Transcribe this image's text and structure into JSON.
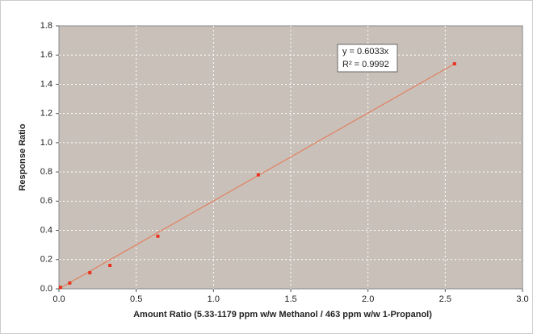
{
  "chart_data": {
    "type": "scatter",
    "x_label": "Amount Ratio (5.33-1179 ppm w/w Methanol / 463 ppm w/w 1-Propanol)",
    "y_label": "Response Ratio",
    "series": [
      {
        "color": "#e8321e",
        "x": [
          0.01,
          0.07,
          0.2,
          0.33,
          0.64,
          1.29,
          2.56
        ],
        "values": [
          0.01,
          0.04,
          0.11,
          0.16,
          0.36,
          0.78,
          1.54
        ]
      }
    ],
    "trendline": {
      "color": "#e08060",
      "x": [
        0,
        2.56
      ],
      "values": [
        0,
        1.54
      ]
    },
    "annotations": [
      "y = 0.6033x",
      "R² = 0.9992"
    ],
    "xlim": [
      0,
      3
    ],
    "xticks": [
      {
        "value": 0,
        "label": "0.0"
      },
      0.5,
      {
        "value": 1,
        "label": "1.0"
      },
      1.5,
      {
        "value": 2,
        "label": "2.0"
      },
      2.5,
      {
        "value": 3,
        "label": "3.0"
      }
    ],
    "ylim": [
      0,
      1.8
    ],
    "yticks": [
      {
        "value": 0,
        "label": "0.0"
      },
      0.2,
      0.4,
      0.6,
      0.8,
      {
        "value": 1,
        "label": "1.0"
      },
      1.2,
      1.4,
      1.6,
      1.8
    ],
    "grid": true
  }
}
